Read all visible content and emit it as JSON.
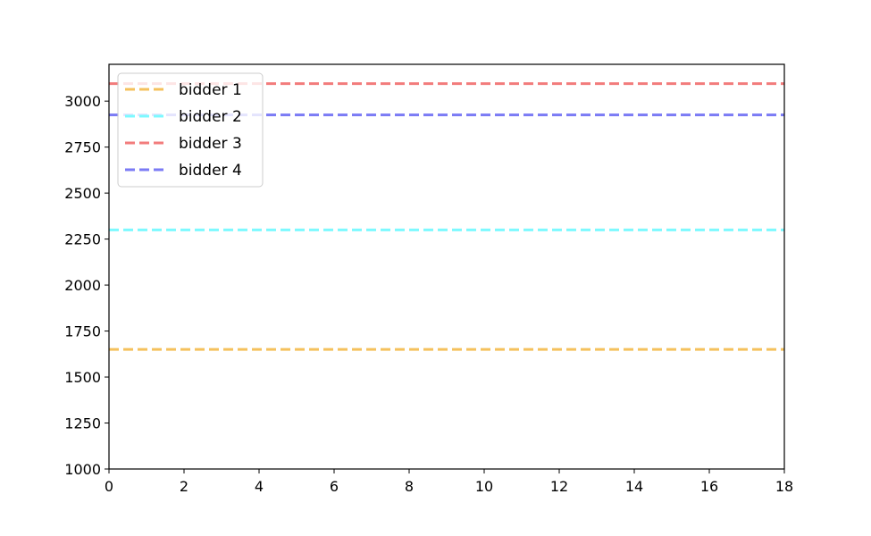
{
  "chart_data": {
    "type": "line",
    "title": "",
    "xlabel": "",
    "ylabel": "",
    "xlim": [
      0,
      18
    ],
    "ylim": [
      1000,
      3200
    ],
    "xticks": [
      0,
      2,
      4,
      6,
      8,
      10,
      12,
      14,
      16,
      18
    ],
    "yticks": [
      1000,
      1250,
      1500,
      1750,
      2000,
      2250,
      2500,
      2750,
      3000
    ],
    "grid": false,
    "legend_position": "top-left",
    "series": [
      {
        "name": "bidder 1",
        "color": "#f5c15c",
        "linestyle": "dashed",
        "x": [
          0,
          18
        ],
        "y": [
          1650,
          1650
        ]
      },
      {
        "name": "bidder 2",
        "color": "#7df9ff",
        "linestyle": "dashed",
        "x": [
          0,
          18
        ],
        "y": [
          2300,
          2300
        ]
      },
      {
        "name": "bidder 3",
        "color": "#f27c7c",
        "linestyle": "dashed",
        "x": [
          0,
          18
        ],
        "y": [
          3095,
          3095
        ]
      },
      {
        "name": "bidder 4",
        "color": "#7b7bf5",
        "linestyle": "dashed",
        "x": [
          0,
          18
        ],
        "y": [
          2925,
          2925
        ]
      }
    ]
  }
}
